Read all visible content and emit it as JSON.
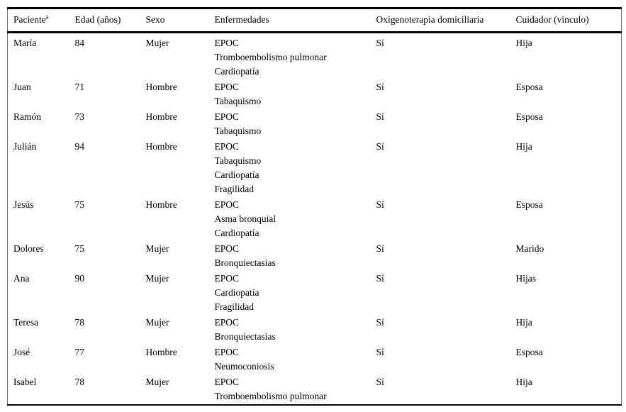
{
  "table": {
    "columns": [
      {
        "key": "name",
        "label": "Paciente",
        "footnote_mark": "a"
      },
      {
        "key": "age",
        "label": "Edad (años)"
      },
      {
        "key": "sex",
        "label": "Sexo"
      },
      {
        "key": "diseases",
        "label": "Enfermedades"
      },
      {
        "key": "oxygen",
        "label": "Oxigenoterapia domiciliaria"
      },
      {
        "key": "caregiver",
        "label": "Cuidador (vinculo)"
      }
    ],
    "rows": [
      {
        "name": "María",
        "age": "84",
        "sex": "Mujer",
        "diseases": [
          "EPOC",
          "Tromboembolismo pulmonar",
          "Cardiopatía"
        ],
        "oxygen": "Sí",
        "caregiver": "Hija"
      },
      {
        "name": "Juan",
        "age": "71",
        "sex": "Hombre",
        "diseases": [
          "EPOC",
          "Tabaquismo"
        ],
        "oxygen": "Sí",
        "caregiver": "Esposa"
      },
      {
        "name": "Ramón",
        "age": "73",
        "sex": "Hombre",
        "diseases": [
          "EPOC",
          "Tabaquismo"
        ],
        "oxygen": "Sí",
        "caregiver": "Esposa"
      },
      {
        "name": "Julián",
        "age": "94",
        "sex": "Hombre",
        "diseases": [
          "EPOC",
          "Tabaquismo",
          "Cardiopatía",
          "Fragilidad"
        ],
        "oxygen": "Sí",
        "caregiver": "Hija"
      },
      {
        "name": "Jesús",
        "age": "75",
        "sex": "Hombre",
        "diseases": [
          "EPOC",
          "Asma bronquial",
          "Cardiopatía"
        ],
        "oxygen": "Sí",
        "caregiver": "Esposa"
      },
      {
        "name": "Dolores",
        "age": "75",
        "sex": "Mujer",
        "diseases": [
          "EPOC",
          "Bronquiectasias"
        ],
        "oxygen": "Sí",
        "caregiver": "Marido"
      },
      {
        "name": "Ana",
        "age": "90",
        "sex": "Mujer",
        "diseases": [
          "EPOC",
          "Cardiopatía",
          "Fragilidad"
        ],
        "oxygen": "Sí",
        "caregiver": "Hijas"
      },
      {
        "name": "Teresa",
        "age": "78",
        "sex": "Mujer",
        "diseases": [
          "EPOC",
          "Bronquiectasias"
        ],
        "oxygen": "Sí",
        "caregiver": "Hija"
      },
      {
        "name": "José",
        "age": "77",
        "sex": "Hombre",
        "diseases": [
          "EPOC",
          "Neumoconiosis"
        ],
        "oxygen": "Sí",
        "caregiver": "Esposa"
      },
      {
        "name": "Isabel",
        "age": "78",
        "sex": "Mujer",
        "diseases": [
          "EPOC",
          "Tromboembolismo pulmonar"
        ],
        "oxygen": "Sí",
        "caregiver": "Hija"
      }
    ]
  }
}
